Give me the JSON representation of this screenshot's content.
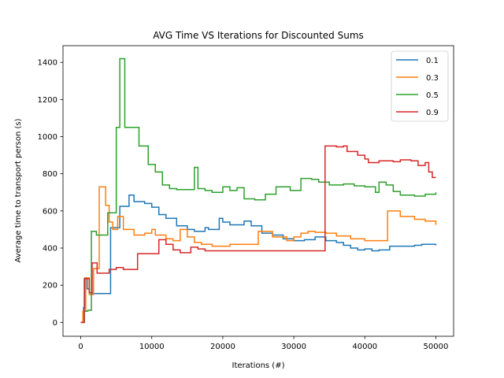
{
  "chart_data": {
    "type": "line",
    "title": "AVG Time VS Iterations for Discounted Sums",
    "xlabel": "Iterations (#)",
    "ylabel": "Average time to transport person (s)",
    "xlim": [
      -2500,
      52500
    ],
    "ylim": [
      -75,
      1490
    ],
    "xticks": [
      0,
      10000,
      20000,
      30000,
      40000,
      50000
    ],
    "xtick_labels": [
      "0",
      "10000",
      "20000",
      "30000",
      "40000",
      "50000"
    ],
    "yticks": [
      0,
      200,
      400,
      600,
      800,
      1000,
      1200,
      1400
    ],
    "ytick_labels": [
      "0",
      "200",
      "400",
      "600",
      "800",
      "1000",
      "1200",
      "1400"
    ],
    "grid": false,
    "legend_position": "top-right",
    "step": true,
    "series": [
      {
        "name": "0.1",
        "color": "#1f77b4",
        "points": [
          [
            0,
            0
          ],
          [
            400,
            80
          ],
          [
            600,
            240
          ],
          [
            900,
            180
          ],
          [
            1200,
            160
          ],
          [
            1500,
            155
          ],
          [
            2500,
            155
          ],
          [
            3200,
            155
          ],
          [
            4200,
            510
          ],
          [
            5500,
            625
          ],
          [
            6800,
            685
          ],
          [
            7500,
            650
          ],
          [
            9000,
            640
          ],
          [
            10000,
            620
          ],
          [
            11000,
            580
          ],
          [
            12000,
            560
          ],
          [
            13500,
            520
          ],
          [
            15000,
            500
          ],
          [
            16000,
            490
          ],
          [
            17500,
            510
          ],
          [
            18000,
            500
          ],
          [
            19500,
            560
          ],
          [
            20000,
            540
          ],
          [
            21000,
            525
          ],
          [
            23000,
            545
          ],
          [
            24000,
            520
          ],
          [
            25500,
            480
          ],
          [
            27000,
            470
          ],
          [
            28500,
            450
          ],
          [
            30000,
            440
          ],
          [
            31500,
            445
          ],
          [
            33000,
            460
          ],
          [
            34500,
            440
          ],
          [
            36000,
            430
          ],
          [
            37000,
            415
          ],
          [
            38000,
            400
          ],
          [
            39000,
            390
          ],
          [
            40000,
            395
          ],
          [
            41000,
            385
          ],
          [
            42000,
            390
          ],
          [
            43500,
            410
          ],
          [
            45000,
            410
          ],
          [
            47000,
            415
          ],
          [
            48000,
            420
          ],
          [
            50000,
            415
          ]
        ]
      },
      {
        "name": "0.3",
        "color": "#ff7f0e",
        "points": [
          [
            0,
            0
          ],
          [
            300,
            60
          ],
          [
            700,
            240
          ],
          [
            1200,
            150
          ],
          [
            1800,
            290
          ],
          [
            2600,
            730
          ],
          [
            3500,
            630
          ],
          [
            4000,
            540
          ],
          [
            4500,
            500
          ],
          [
            5200,
            570
          ],
          [
            6000,
            500
          ],
          [
            7500,
            470
          ],
          [
            9000,
            480
          ],
          [
            10000,
            500
          ],
          [
            10500,
            470
          ],
          [
            12000,
            450
          ],
          [
            13000,
            440
          ],
          [
            14000,
            500
          ],
          [
            15000,
            460
          ],
          [
            16000,
            430
          ],
          [
            17000,
            420
          ],
          [
            18500,
            410
          ],
          [
            21000,
            420
          ],
          [
            23000,
            420
          ],
          [
            25000,
            490
          ],
          [
            27000,
            460
          ],
          [
            29000,
            440
          ],
          [
            30000,
            460
          ],
          [
            31000,
            480
          ],
          [
            32000,
            490
          ],
          [
            33000,
            485
          ],
          [
            34500,
            480
          ],
          [
            36000,
            465
          ],
          [
            38000,
            450
          ],
          [
            40000,
            440
          ],
          [
            43000,
            440
          ],
          [
            43200,
            600
          ],
          [
            45000,
            570
          ],
          [
            47000,
            555
          ],
          [
            48500,
            545
          ],
          [
            50000,
            525
          ]
        ]
      },
      {
        "name": "0.5",
        "color": "#2ca02c",
        "points": [
          [
            0,
            0
          ],
          [
            500,
            60
          ],
          [
            1000,
            65
          ],
          [
            1500,
            490
          ],
          [
            2200,
            470
          ],
          [
            3800,
            590
          ],
          [
            5000,
            1050
          ],
          [
            5500,
            1420
          ],
          [
            6200,
            1050
          ],
          [
            8200,
            950
          ],
          [
            9500,
            850
          ],
          [
            10500,
            810
          ],
          [
            11500,
            740
          ],
          [
            12500,
            720
          ],
          [
            13500,
            715
          ],
          [
            15000,
            715
          ],
          [
            16000,
            835
          ],
          [
            16500,
            720
          ],
          [
            17500,
            710
          ],
          [
            18500,
            700
          ],
          [
            20000,
            730
          ],
          [
            21000,
            710
          ],
          [
            22000,
            725
          ],
          [
            23000,
            665
          ],
          [
            24500,
            660
          ],
          [
            26000,
            690
          ],
          [
            27500,
            730
          ],
          [
            29500,
            710
          ],
          [
            31000,
            775
          ],
          [
            32500,
            770
          ],
          [
            33500,
            755
          ],
          [
            35000,
            740
          ],
          [
            37000,
            745
          ],
          [
            38500,
            735
          ],
          [
            40000,
            730
          ],
          [
            41500,
            700
          ],
          [
            42000,
            755
          ],
          [
            43000,
            740
          ],
          [
            44000,
            705
          ],
          [
            45000,
            685
          ],
          [
            47000,
            680
          ],
          [
            48500,
            690
          ],
          [
            50000,
            700
          ]
        ]
      },
      {
        "name": "0.9",
        "color": "#d62728",
        "points": [
          [
            0,
            0
          ],
          [
            500,
            235
          ],
          [
            1200,
            160
          ],
          [
            1600,
            320
          ],
          [
            2300,
            265
          ],
          [
            4000,
            285
          ],
          [
            5000,
            295
          ],
          [
            6000,
            285
          ],
          [
            8000,
            370
          ],
          [
            11000,
            445
          ],
          [
            12000,
            420
          ],
          [
            13000,
            390
          ],
          [
            14000,
            375
          ],
          [
            15500,
            405
          ],
          [
            16500,
            395
          ],
          [
            17500,
            385
          ],
          [
            34300,
            385
          ],
          [
            34400,
            950
          ],
          [
            36000,
            945
          ],
          [
            37000,
            950
          ],
          [
            37500,
            920
          ],
          [
            39000,
            900
          ],
          [
            40000,
            880
          ],
          [
            40500,
            860
          ],
          [
            42000,
            870
          ],
          [
            44000,
            865
          ],
          [
            45000,
            875
          ],
          [
            46500,
            870
          ],
          [
            47500,
            845
          ],
          [
            48500,
            860
          ],
          [
            49000,
            810
          ],
          [
            49500,
            780
          ],
          [
            50000,
            780
          ]
        ]
      }
    ]
  }
}
